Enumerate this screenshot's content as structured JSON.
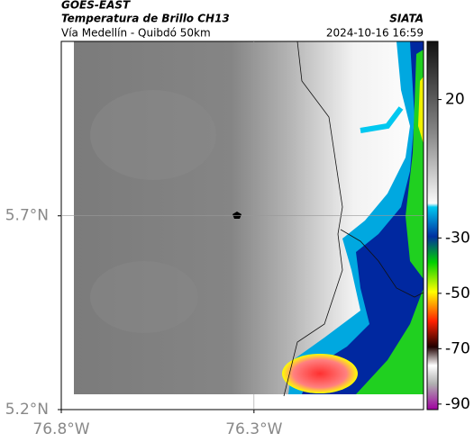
{
  "header": {
    "source": "GOES-EAST",
    "title": "Temperatura de Brillo CH13",
    "route": "Vía Medellín - Quibdó 50km",
    "brand": "SIATA",
    "timestamp": "2024-10-16 16:59"
  },
  "map": {
    "lonlim": [
      -76.8,
      -75.86
    ],
    "latlim": [
      5.2,
      6.15
    ],
    "xticks": [
      {
        "value": -76.8,
        "label": "76.8°W"
      },
      {
        "value": -76.3,
        "label": "76.3°W"
      }
    ],
    "yticks": [
      {
        "value": 5.2,
        "label": "5.2°N"
      },
      {
        "value": 5.7,
        "label": "5.7°N"
      }
    ]
  },
  "colorbar": {
    "clim": [
      41,
      -92
    ],
    "ticks": [
      20,
      -30,
      -50,
      -70,
      -90
    ]
  }
}
